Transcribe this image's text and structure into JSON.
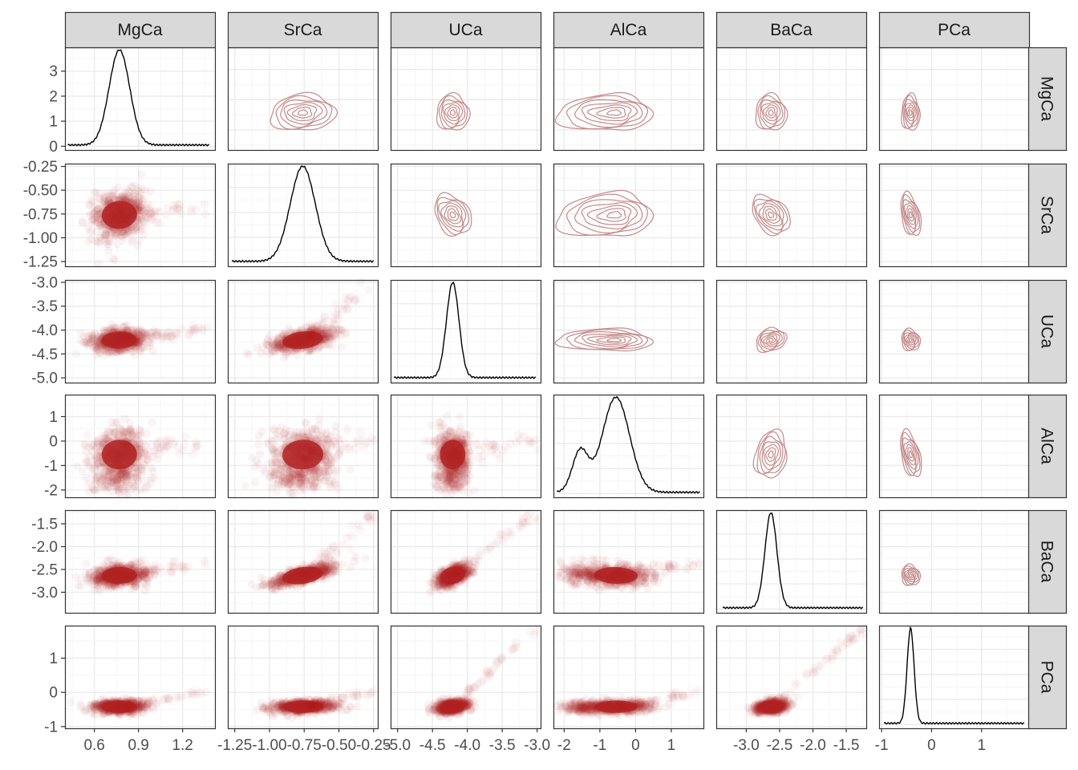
{
  "chart_data": {
    "type": "scatter",
    "subtype": "pairs-matrix",
    "variables": [
      "MgCa",
      "SrCa",
      "UCa",
      "AlCa",
      "BaCa",
      "PCa"
    ],
    "axes": {
      "MgCa": {
        "range": [
          0.4,
          1.42
        ],
        "ticks": [
          0.6,
          0.9,
          1.2
        ],
        "tick_labels": [
          "0.6",
          "0.9",
          "1.2"
        ]
      },
      "SrCa": {
        "range": [
          -1.3,
          -0.22
        ],
        "ticks": [
          -1.25,
          -1.0,
          -0.75,
          -0.5,
          -0.25
        ],
        "tick_labels": [
          "-1.25",
          "-1.00",
          "-0.75",
          "-0.50",
          "-0.25"
        ]
      },
      "UCa": {
        "range": [
          -5.1,
          -2.95
        ],
        "ticks": [
          -5.0,
          -4.5,
          -4.0,
          -3.5,
          -3.0
        ],
        "tick_labels": [
          "-5.0",
          "-4.5",
          "-4.0",
          "-3.5",
          "-3.0"
        ]
      },
      "AlCa": {
        "range": [
          -2.3,
          1.9
        ],
        "ticks": [
          -2,
          -1,
          0,
          1
        ],
        "tick_labels": [
          "-2",
          "-1",
          "0",
          "1"
        ]
      },
      "BaCa": {
        "range": [
          -3.45,
          -1.2
        ],
        "ticks": [
          -3.0,
          -2.5,
          -2.0,
          -1.5
        ],
        "tick_labels": [
          "-3.0",
          "-2.5",
          "-2.0",
          "-1.5"
        ]
      },
      "PCa": {
        "range": [
          -1.05,
          1.95
        ],
        "ticks": [
          -1,
          0,
          1
        ],
        "tick_labels": [
          "-1",
          "0",
          "1"
        ]
      }
    },
    "first_column_density_axis": {
      "range": [
        -0.15,
        3.95
      ],
      "ticks": [
        0,
        1,
        2,
        3
      ],
      "tick_labels": [
        "0",
        "1",
        "2",
        "3"
      ]
    },
    "diagonal": "kernel density curves",
    "lower_triangle": "scatter points, semi-transparent",
    "upper_triangle": "2D density contours",
    "distributions": {
      "MgCa": {
        "peaks": [
          {
            "center": 0.77,
            "sd": 0.07,
            "weight": 1.0
          }
        ],
        "tail": [
          0.42,
          1.38
        ]
      },
      "SrCa": {
        "peaks": [
          {
            "center": -0.76,
            "sd": 0.09,
            "weight": 1.0
          }
        ],
        "tail": [
          -1.27,
          -0.25
        ]
      },
      "UCa": {
        "peaks": [
          {
            "center": -4.21,
            "sd": 0.09,
            "weight": 1.0
          }
        ],
        "tail": [
          -5.05,
          -3.02
        ]
      },
      "AlCa": {
        "peaks": [
          {
            "center": -0.55,
            "sd": 0.38,
            "weight": 0.8
          },
          {
            "center": -1.55,
            "sd": 0.22,
            "weight": 0.2
          }
        ],
        "tail": [
          -2.2,
          1.8
        ]
      },
      "BaCa": {
        "peaks": [
          {
            "center": -2.63,
            "sd": 0.09,
            "weight": 1.0
          }
        ],
        "tail": [
          -3.35,
          -1.25
        ]
      },
      "PCa": {
        "peaks": [
          {
            "center": -0.42,
            "sd": 0.07,
            "weight": 1.0
          }
        ],
        "tail": [
          -0.95,
          1.85
        ]
      }
    },
    "colors": {
      "points": "#b22222",
      "contours": "#c48a8a",
      "density_line": "#000000",
      "panel_border": "#333333",
      "grid_major": "#ebebeb",
      "grid_minor": "#f5f5f5",
      "strip_fill": "#d9d9d9"
    }
  }
}
